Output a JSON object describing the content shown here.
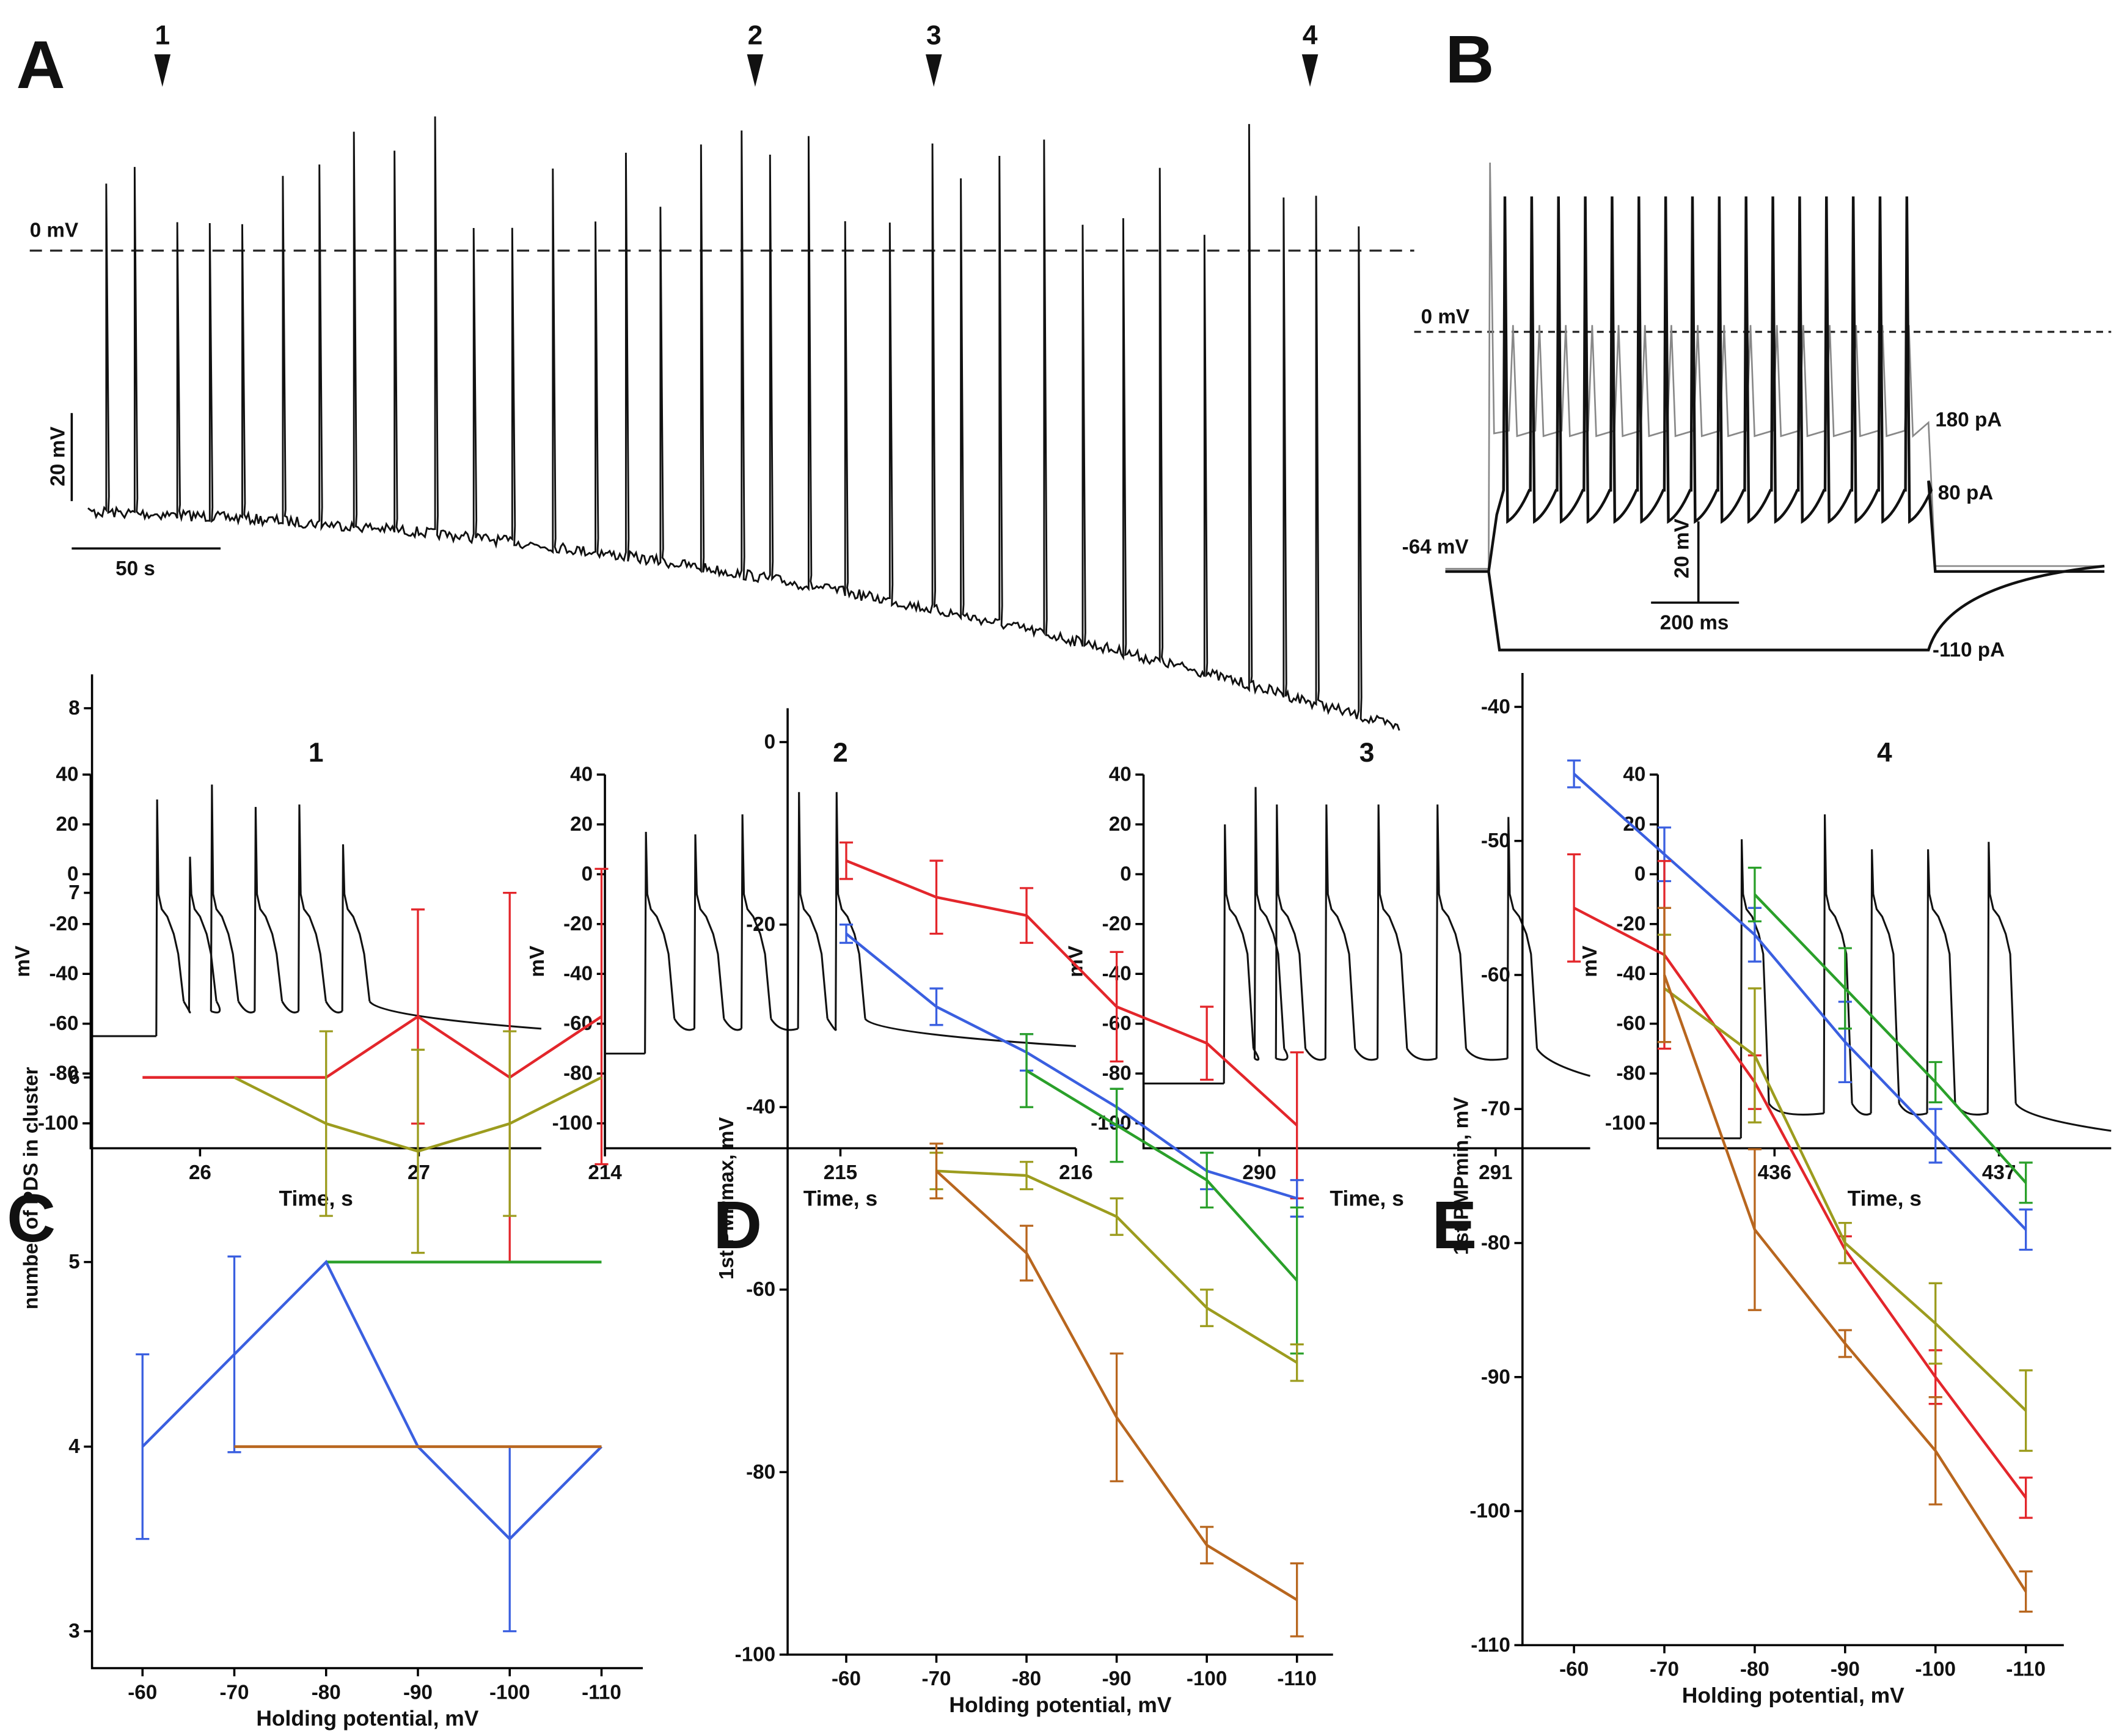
{
  "panel_a": {
    "panel": "A",
    "markers": [
      "1",
      "2",
      "3",
      "4"
    ],
    "zero_label": "0 mV",
    "scale_v": "20 mV",
    "scale_t": "50 s"
  },
  "panel_b": {
    "panel": "B",
    "zero_label": "0 mV",
    "rest_label": "-64 mV",
    "scale_v": "20 mV",
    "scale_t": "200 ms",
    "currents": [
      "180 pA",
      "80 pA",
      "-110 pA"
    ]
  },
  "chart_data": [
    {
      "type": "trace",
      "title": "1",
      "ylabel": "mV",
      "xlabel": "Time, s",
      "xlim": [
        25.5,
        27.56
      ],
      "xticks": [
        26,
        27
      ],
      "ylim": [
        -110,
        40
      ],
      "yticks": [
        40,
        20,
        0,
        -20,
        -40,
        -60,
        -80,
        -100
      ],
      "rest": -65,
      "burst_times": [
        25.8,
        25.95,
        26.05,
        26.25,
        26.45,
        26.65
      ],
      "burst_peaks": [
        30,
        7,
        36,
        27,
        28,
        12
      ],
      "color": "#111111"
    },
    {
      "type": "trace",
      "title": "2",
      "ylabel": "mV",
      "xlabel": "Time, s",
      "xlim": [
        214,
        216
      ],
      "xticks": [
        214,
        215,
        216
      ],
      "ylim": [
        -110,
        40
      ],
      "yticks": [
        40,
        20,
        0,
        -20,
        -40,
        -60,
        -80,
        -100
      ],
      "rest": -72,
      "burst_times": [
        214.17,
        214.38,
        214.58,
        214.82,
        214.98
      ],
      "burst_peaks": [
        17,
        16,
        24,
        33,
        33
      ],
      "color": "#111111"
    },
    {
      "type": "trace",
      "title": "3",
      "ylabel": "mV",
      "xlabel": "Time, s",
      "xlim": [
        289.51,
        291.4
      ],
      "xticks": [
        290,
        291
      ],
      "ylim": [
        -110,
        40
      ],
      "yticks": [
        40,
        20,
        0,
        -20,
        -40,
        -60,
        -80,
        -100
      ],
      "rest": -84,
      "burst_times": [
        289.85,
        289.98,
        290.07,
        290.28,
        290.5,
        290.75,
        291.05
      ],
      "burst_peaks": [
        20,
        35,
        28,
        28,
        28,
        28,
        23
      ],
      "color": "#111111"
    },
    {
      "type": "trace",
      "title": "4",
      "ylabel": "mV",
      "xlabel": "Time, s",
      "xlim": [
        435.48,
        437.5
      ],
      "xticks": [
        436,
        437
      ],
      "ylim": [
        -110,
        40
      ],
      "yticks": [
        40,
        20,
        0,
        -20,
        -40,
        -60,
        -80,
        -100
      ],
      "rest": -106,
      "burst_times": [
        435.85,
        436.22,
        436.43,
        436.68,
        436.95
      ],
      "burst_peaks": [
        14,
        24,
        10,
        10,
        13
      ],
      "color": "#111111"
    },
    {
      "type": "line",
      "panel": "C",
      "ylabel": "number of PDS in cluster",
      "xlabel": "Holding potential, mV",
      "x": [
        -60,
        -70,
        -80,
        -90,
        -100,
        -110
      ],
      "xlim": [
        -54.5,
        -114.5
      ],
      "xticks": [
        -60,
        -70,
        -80,
        -90,
        -100,
        -110
      ],
      "ylim": [
        2.8,
        8
      ],
      "yticks": [
        8,
        7,
        6,
        5,
        4,
        3
      ],
      "series": [
        {
          "color": "#e3262b",
          "values": [
            6,
            6,
            6,
            6.33,
            6,
            6.33
          ],
          "errors": [
            null,
            null,
            null,
            0.58,
            1,
            0.8
          ]
        },
        {
          "color": "#9c9c1e",
          "values": [
            null,
            6,
            5.75,
            5.6,
            5.75,
            6
          ],
          "errors": [
            null,
            null,
            0.5,
            0.55,
            0.5,
            null
          ]
        },
        {
          "color": "#2aa02a",
          "values": [
            null,
            null,
            5,
            5,
            5,
            5
          ],
          "errors": [
            null,
            null,
            null,
            null,
            null,
            null
          ]
        },
        {
          "color": "#3a5fe0",
          "values": [
            4,
            4.5,
            5,
            4,
            3.5,
            4
          ],
          "errors": [
            0.5,
            0.53,
            null,
            null,
            0.5,
            null
          ]
        },
        {
          "color": "#b8661e",
          "values": [
            null,
            4,
            4,
            4,
            4,
            4
          ],
          "errors": [
            null,
            null,
            null,
            null,
            null,
            null
          ]
        }
      ]
    },
    {
      "type": "line",
      "panel": "D",
      "ylabel": "1st PMPmax, mV",
      "xlabel": "Holding potential, mV",
      "x": [
        -60,
        -70,
        -80,
        -90,
        -100,
        -110
      ],
      "xlim": [
        -53.5,
        -114
      ],
      "xticks": [
        -60,
        -70,
        -80,
        -90,
        -100,
        -110
      ],
      "ylim": [
        -100,
        0
      ],
      "yticks": [
        0,
        -20,
        -40,
        -60,
        -80,
        -100
      ],
      "series": [
        {
          "color": "#e3262b",
          "values": [
            -13,
            -17,
            -19,
            -29,
            -33,
            -42
          ],
          "errors": [
            2,
            4,
            3,
            6,
            4,
            8
          ]
        },
        {
          "color": "#3a5fe0",
          "values": [
            -21,
            -29,
            -34,
            -40,
            -47,
            -50
          ],
          "errors": [
            1,
            2,
            2,
            2,
            2,
            2
          ]
        },
        {
          "color": "#2aa02a",
          "values": [
            null,
            null,
            -36,
            -42,
            -48,
            -59
          ],
          "errors": [
            null,
            null,
            4,
            4,
            3,
            8
          ]
        },
        {
          "color": "#9c9c1e",
          "values": [
            null,
            -47,
            -47.5,
            -52,
            -62,
            -68
          ],
          "errors": [
            null,
            2,
            1.5,
            2,
            2,
            2
          ]
        },
        {
          "color": "#b8661e",
          "values": [
            null,
            -47,
            -56,
            -74,
            -88,
            -94
          ],
          "errors": [
            null,
            3,
            3,
            7,
            2,
            4
          ]
        }
      ]
    },
    {
      "type": "line",
      "panel": "E",
      "ylabel": "1st PMPmin, mV",
      "xlabel": "Holding potential, mV",
      "x": [
        -60,
        -70,
        -80,
        -90,
        -100,
        -110
      ],
      "xlim": [
        -54.3,
        -114.2
      ],
      "xticks": [
        -60,
        -70,
        -80,
        -90,
        -100,
        -110
      ],
      "ylim": [
        -110,
        -40
      ],
      "yticks": [
        -40,
        -50,
        -60,
        -70,
        -80,
        -90,
        -100,
        -110
      ],
      "series": [
        {
          "color": "#3a5fe0",
          "values": [
            -45,
            -51,
            -57,
            -65,
            -72,
            -79
          ],
          "errors": [
            1,
            2,
            2,
            3,
            2,
            1.5
          ]
        },
        {
          "color": "#2aa02a",
          "values": [
            null,
            null,
            -54,
            -61,
            -68,
            -75.5
          ],
          "errors": [
            null,
            null,
            2,
            3,
            1.5,
            1.5
          ]
        },
        {
          "color": "#e3262b",
          "values": [
            -55,
            -58.5,
            -68,
            -80.5,
            -90,
            -99
          ],
          "errors": [
            4,
            7,
            2,
            1,
            2,
            1.5
          ]
        },
        {
          "color": "#9c9c1e",
          "values": [
            null,
            -61,
            -66,
            -80,
            -86,
            -92.5
          ],
          "errors": [
            null,
            4,
            5,
            1.5,
            3,
            3
          ]
        },
        {
          "color": "#b8661e",
          "values": [
            null,
            -60,
            -79,
            -87.5,
            -95.5,
            -106
          ],
          "errors": [
            null,
            5,
            6,
            1,
            4,
            1.5
          ]
        }
      ]
    }
  ]
}
